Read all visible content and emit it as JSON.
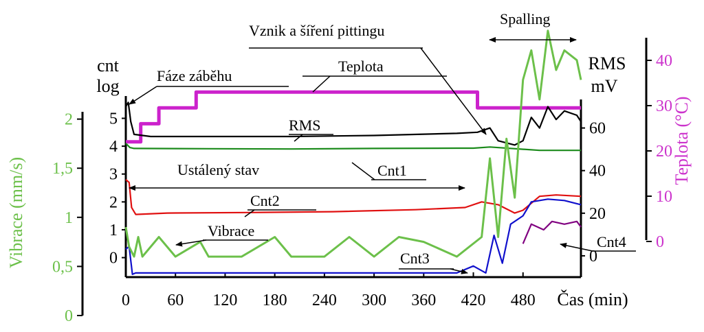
{
  "chart_data": {
    "type": "line",
    "xlabel": "Čas (min)",
    "x_ticks": [
      0,
      60,
      120,
      180,
      240,
      300,
      360,
      420,
      480
    ],
    "xlim": [
      0,
      550
    ],
    "axes": {
      "vibrace": {
        "label": "Vibrace (mm/s)",
        "ticks": [
          "0",
          "0,5",
          "1",
          "1,5",
          "2"
        ],
        "ylim": [
          0,
          2.2
        ],
        "color": "#6cc04a"
      },
      "cnt": {
        "label_top": "cnt",
        "label_bottom": "log",
        "ticks": [
          "0",
          "1",
          "2",
          "3",
          "4",
          "5"
        ],
        "ylim": [
          -0.7,
          5.8
        ],
        "color": "#000000"
      },
      "rms": {
        "label_top": "RMS",
        "label_bottom": "mV",
        "ticks": [
          "0",
          "20",
          "40",
          "60"
        ],
        "ylim": [
          -10,
          75
        ],
        "color": "#000000"
      },
      "teplota": {
        "label": "Teplota (°C)",
        "ticks": [
          "0",
          "10",
          "20",
          "30",
          "40"
        ],
        "ylim": [
          0,
          45
        ],
        "color": "#cc33cc"
      }
    },
    "series": [
      {
        "name": "Teplota",
        "axis": "teplota",
        "color": "#cc22cc",
        "points": [
          [
            0,
            22
          ],
          [
            18,
            22
          ],
          [
            18,
            26
          ],
          [
            40,
            26
          ],
          [
            40,
            29.5
          ],
          [
            85,
            29.5
          ],
          [
            85,
            33
          ],
          [
            425,
            33
          ],
          [
            425,
            29.5
          ],
          [
            550,
            29.5
          ]
        ]
      },
      {
        "name": "RMS",
        "axis": "rms",
        "color": "#000000",
        "points": [
          [
            0,
            70
          ],
          [
            3,
            72
          ],
          [
            6,
            63
          ],
          [
            10,
            57
          ],
          [
            30,
            56
          ],
          [
            100,
            56
          ],
          [
            200,
            56
          ],
          [
            300,
            56.5
          ],
          [
            400,
            57.5
          ],
          [
            425,
            58
          ],
          [
            440,
            60
          ],
          [
            450,
            54
          ],
          [
            470,
            52
          ],
          [
            480,
            54
          ],
          [
            490,
            65
          ],
          [
            500,
            60
          ],
          [
            510,
            70
          ],
          [
            520,
            64
          ],
          [
            530,
            68
          ],
          [
            545,
            66
          ],
          [
            550,
            63
          ]
        ]
      },
      {
        "name": "Cnt1",
        "axis": "cnt",
        "color": "#1a8a1a",
        "points": [
          [
            0,
            4.1
          ],
          [
            5,
            3.95
          ],
          [
            10,
            3.92
          ],
          [
            100,
            3.91
          ],
          [
            200,
            3.9
          ],
          [
            300,
            3.92
          ],
          [
            400,
            3.93
          ],
          [
            420,
            3.93
          ],
          [
            440,
            3.97
          ],
          [
            500,
            3.85
          ],
          [
            550,
            3.85
          ]
        ]
      },
      {
        "name": "Cnt2",
        "axis": "cnt",
        "color": "#e01010",
        "points": [
          [
            0,
            2.8
          ],
          [
            4,
            2.7
          ],
          [
            7,
            1.8
          ],
          [
            12,
            1.55
          ],
          [
            50,
            1.6
          ],
          [
            150,
            1.62
          ],
          [
            250,
            1.65
          ],
          [
            350,
            1.72
          ],
          [
            410,
            1.8
          ],
          [
            430,
            2.0
          ],
          [
            450,
            1.9
          ],
          [
            470,
            1.6
          ],
          [
            480,
            1.7
          ],
          [
            500,
            2.2
          ],
          [
            520,
            2.25
          ],
          [
            550,
            2.2
          ]
        ]
      },
      {
        "name": "Cnt3",
        "axis": "cnt",
        "color": "#1010cc",
        "points": [
          [
            0,
            0.3
          ],
          [
            4,
            0.4
          ],
          [
            8,
            -0.6
          ],
          [
            12,
            -0.55
          ],
          [
            400,
            -0.55
          ],
          [
            420,
            -0.3
          ],
          [
            435,
            -0.55
          ],
          [
            445,
            0.8
          ],
          [
            455,
            -0.2
          ],
          [
            465,
            1.2
          ],
          [
            480,
            1.5
          ],
          [
            490,
            2.0
          ],
          [
            510,
            2.1
          ],
          [
            530,
            2.05
          ],
          [
            550,
            1.9
          ]
        ]
      },
      {
        "name": "Cnt4",
        "axis": "cnt",
        "color": "#800080",
        "points": [
          [
            480,
            0.5
          ],
          [
            490,
            1.2
          ],
          [
            505,
            1.0
          ],
          [
            515,
            1.3
          ],
          [
            530,
            1.2
          ],
          [
            545,
            1.3
          ],
          [
            550,
            1.1
          ]
        ]
      },
      {
        "name": "Vibrace",
        "axis": "vibrace",
        "color": "#6cc04a",
        "points": [
          [
            0,
            0.9
          ],
          [
            4,
            0.7
          ],
          [
            10,
            0.6
          ],
          [
            15,
            0.8
          ],
          [
            20,
            0.6
          ],
          [
            40,
            0.8
          ],
          [
            60,
            0.6
          ],
          [
            90,
            0.75
          ],
          [
            100,
            0.6
          ],
          [
            140,
            0.6
          ],
          [
            180,
            0.8
          ],
          [
            200,
            0.6
          ],
          [
            240,
            0.6
          ],
          [
            270,
            0.8
          ],
          [
            300,
            0.6
          ],
          [
            330,
            0.8
          ],
          [
            360,
            0.75
          ],
          [
            400,
            0.6
          ],
          [
            430,
            0.8
          ],
          [
            440,
            1.6
          ],
          [
            450,
            0.8
          ],
          [
            460,
            1.8
          ],
          [
            470,
            1.2
          ],
          [
            480,
            2.4
          ],
          [
            490,
            2.7
          ],
          [
            500,
            2.2
          ],
          [
            510,
            2.9
          ],
          [
            520,
            2.5
          ],
          [
            530,
            2.7
          ],
          [
            545,
            2.6
          ],
          [
            550,
            2.4
          ]
        ]
      }
    ],
    "annotations": {
      "faze_zabehu": "Fáze záběhu",
      "teplota": "Teplota",
      "rms": "RMS",
      "cnt1": "Cnt1",
      "ustaleny_stav": "Ustálený stav",
      "cnt2": "Cnt2",
      "vibrace": "Vibrace",
      "cnt3": "Cnt3",
      "cnt4": "Cnt4",
      "vznik": "Vznik a šíření pittingu",
      "spalling": "Spalling"
    }
  }
}
